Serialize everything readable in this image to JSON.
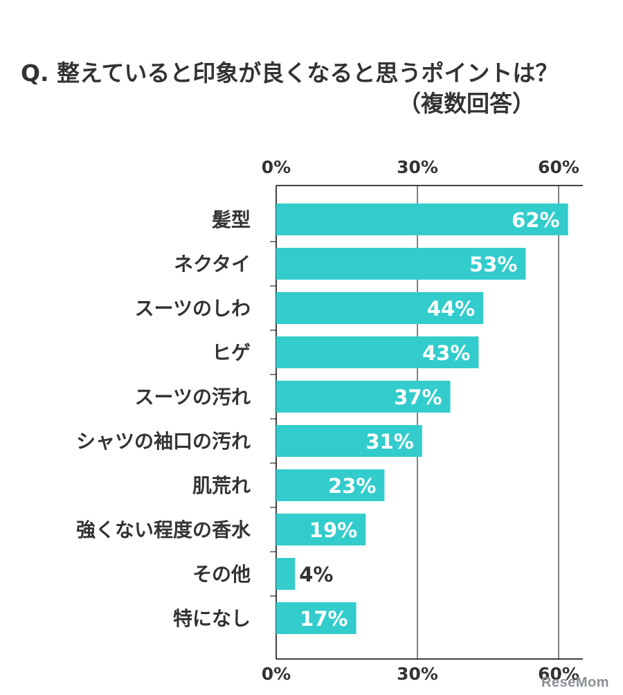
{
  "chart_data": {
    "type": "bar",
    "orientation": "horizontal",
    "title": "Q. 整えていると印象が良くなると思うポイントは？",
    "subtitle": "（複数回答）",
    "categories": [
      "髪型",
      "ネクタイ",
      "スーツのしわ",
      "ヒゲ",
      "スーツの汚れ",
      "シャツの袖口の汚れ",
      "肌荒れ",
      "強くない程度の香水",
      "その他",
      "特になし"
    ],
    "values": [
      62,
      53,
      44,
      43,
      37,
      31,
      23,
      19,
      4,
      17
    ],
    "value_labels": [
      "62%",
      "53%",
      "44%",
      "43%",
      "37%",
      "31%",
      "23%",
      "19%",
      "4%",
      "17%"
    ],
    "x_ticks": [
      0,
      30,
      60
    ],
    "x_tick_labels": [
      "0%",
      "30%",
      "60%"
    ],
    "xlim": [
      0,
      65
    ],
    "grid": true,
    "colors": {
      "bar": "#33cccc",
      "label_inside": "#ffffff",
      "label_outside": "#333333",
      "text": "#333333",
      "axis": "#000000"
    }
  },
  "watermark": "ReseMom"
}
